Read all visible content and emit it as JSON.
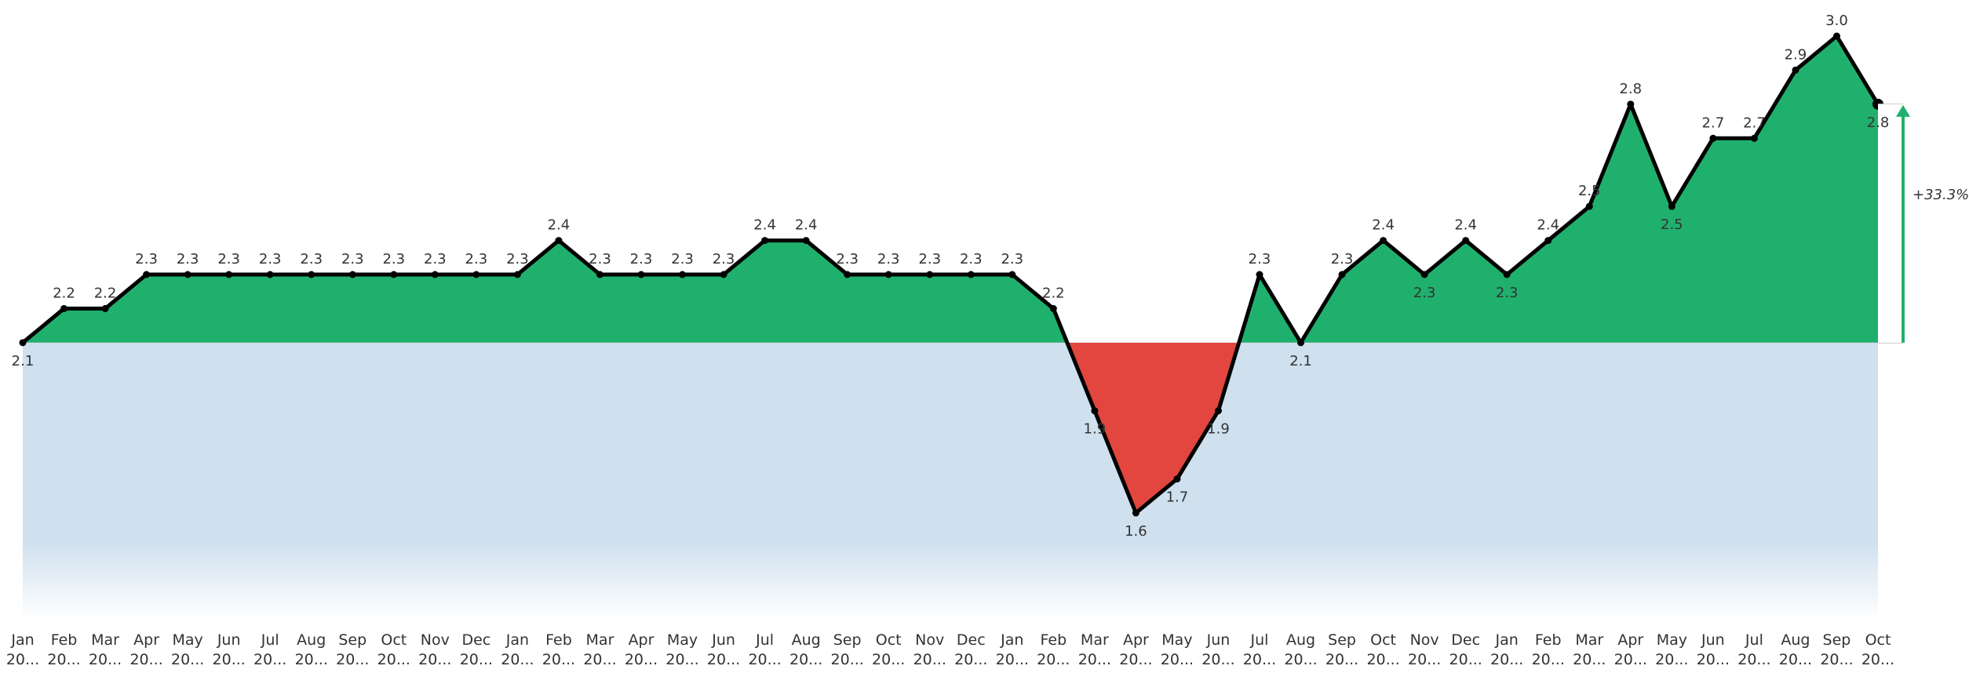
{
  "colors": {
    "above": "#20B06E",
    "below": "#E2463F",
    "baseline_fill": "#CFE0EE",
    "line": "#000000",
    "arrow": "#20B06E"
  },
  "chart_data": {
    "type": "area",
    "title": "",
    "xlabel": "",
    "ylabel": "",
    "baseline": 2.1,
    "ylim": [
      1.6,
      3.0
    ],
    "grid": false,
    "legend": "none",
    "x": [
      {
        "month": "Jan",
        "year": "20..."
      },
      {
        "month": "Feb",
        "year": "20..."
      },
      {
        "month": "Mar",
        "year": "20..."
      },
      {
        "month": "Apr",
        "year": "20..."
      },
      {
        "month": "May",
        "year": "20..."
      },
      {
        "month": "Jun",
        "year": "20..."
      },
      {
        "month": "Jul",
        "year": "20..."
      },
      {
        "month": "Aug",
        "year": "20..."
      },
      {
        "month": "Sep",
        "year": "20..."
      },
      {
        "month": "Oct",
        "year": "20..."
      },
      {
        "month": "Nov",
        "year": "20..."
      },
      {
        "month": "Dec",
        "year": "20..."
      },
      {
        "month": "Jan",
        "year": "20..."
      },
      {
        "month": "Feb",
        "year": "20..."
      },
      {
        "month": "Mar",
        "year": "20..."
      },
      {
        "month": "Apr",
        "year": "20..."
      },
      {
        "month": "May",
        "year": "20..."
      },
      {
        "month": "Jun",
        "year": "20..."
      },
      {
        "month": "Jul",
        "year": "20..."
      },
      {
        "month": "Aug",
        "year": "20..."
      },
      {
        "month": "Sep",
        "year": "20..."
      },
      {
        "month": "Oct",
        "year": "20..."
      },
      {
        "month": "Nov",
        "year": "20..."
      },
      {
        "month": "Dec",
        "year": "20..."
      },
      {
        "month": "Jan",
        "year": "20..."
      },
      {
        "month": "Feb",
        "year": "20..."
      },
      {
        "month": "Mar",
        "year": "20..."
      },
      {
        "month": "Apr",
        "year": "20..."
      },
      {
        "month": "May",
        "year": "20..."
      },
      {
        "month": "Jun",
        "year": "20..."
      },
      {
        "month": "Jul",
        "year": "20..."
      },
      {
        "month": "Aug",
        "year": "20..."
      },
      {
        "month": "Sep",
        "year": "20..."
      },
      {
        "month": "Oct",
        "year": "20..."
      },
      {
        "month": "Nov",
        "year": "20..."
      },
      {
        "month": "Dec",
        "year": "20..."
      },
      {
        "month": "Jan",
        "year": "20..."
      },
      {
        "month": "Feb",
        "year": "20..."
      },
      {
        "month": "Mar",
        "year": "20..."
      },
      {
        "month": "Apr",
        "year": "20..."
      },
      {
        "month": "May",
        "year": "20..."
      },
      {
        "month": "Jun",
        "year": "20..."
      },
      {
        "month": "Jul",
        "year": "20..."
      },
      {
        "month": "Aug",
        "year": "20..."
      },
      {
        "month": "Sep",
        "year": "20..."
      },
      {
        "month": "Oct",
        "year": "20..."
      }
    ],
    "values": [
      2.1,
      2.2,
      2.2,
      2.3,
      2.3,
      2.3,
      2.3,
      2.3,
      2.3,
      2.3,
      2.3,
      2.3,
      2.3,
      2.4,
      2.3,
      2.3,
      2.3,
      2.3,
      2.4,
      2.4,
      2.3,
      2.3,
      2.3,
      2.3,
      2.3,
      2.2,
      1.9,
      1.6,
      1.7,
      1.9,
      2.3,
      2.1,
      2.3,
      2.4,
      2.3,
      2.4,
      2.3,
      2.4,
      2.5,
      2.8,
      2.5,
      2.7,
      2.7,
      2.9,
      3.0,
      2.8
    ],
    "label_positions": [
      "below",
      "above",
      "above",
      "above",
      "above",
      "above",
      "above",
      "above",
      "above",
      "above",
      "above",
      "above",
      "above",
      "above",
      "above",
      "above",
      "above",
      "above",
      "above",
      "above",
      "above",
      "above",
      "above",
      "above",
      "above",
      "above",
      "below",
      "below",
      "below",
      "below",
      "above",
      "below",
      "above",
      "above",
      "below",
      "above",
      "below",
      "above",
      "above",
      "above",
      "below",
      "above",
      "above",
      "above",
      "above",
      "below"
    ],
    "change_annotation": "+33.3%"
  }
}
